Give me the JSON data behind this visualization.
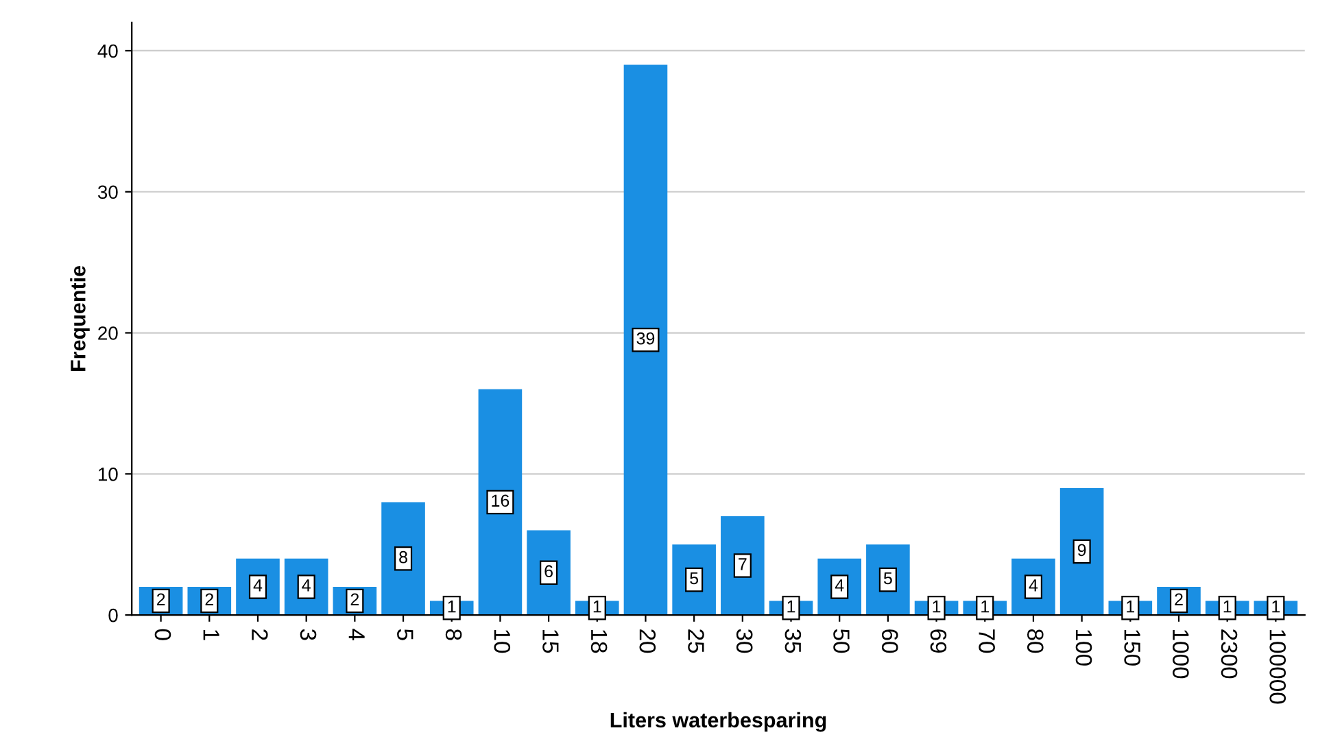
{
  "chart_data": {
    "type": "bar",
    "xlabel": "Liters waterbesparing",
    "ylabel": "Frequentie",
    "categories": [
      "0",
      "1",
      "2",
      "3",
      "4",
      "5",
      "8",
      "10",
      "15",
      "18",
      "20",
      "25",
      "30",
      "35",
      "50",
      "60",
      "69",
      "70",
      "80",
      "100",
      "150",
      "1000",
      "2300",
      "100000"
    ],
    "values": [
      2,
      2,
      4,
      4,
      2,
      8,
      1,
      16,
      6,
      1,
      39,
      5,
      7,
      1,
      4,
      5,
      1,
      1,
      4,
      9,
      1,
      2,
      1,
      1
    ],
    "color": "#1a8fe3",
    "ylim": [
      0,
      42
    ],
    "yticks": [
      0,
      10,
      20,
      30,
      40
    ],
    "grid": "y",
    "data_labels": true
  }
}
